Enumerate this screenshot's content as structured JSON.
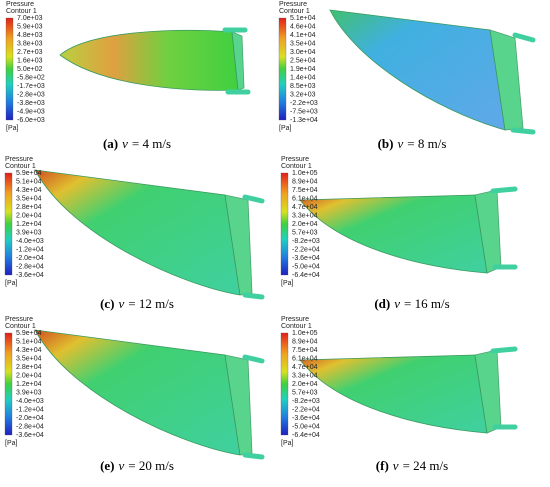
{
  "panels": [
    {
      "legend": {
        "title": "Pressure",
        "subtitle": "Contour 1",
        "unit": "[Pa]",
        "labels": [
          "7.0e+03",
          "5.9e+03",
          "4.8e+03",
          "3.8e+03",
          "2.7e+03",
          "1.6e+03",
          "5.0e+02",
          "-5.8e+02",
          "-1.7e+03",
          "-2.8e+03",
          "-3.8e+03",
          "-4.9e+03",
          "-6.0e+03"
        ]
      },
      "caption": {
        "label": "(a)",
        "variable": "v",
        "text": "= 4 m/s"
      }
    },
    {
      "legend": {
        "title": "Pressure",
        "subtitle": "Contour 1",
        "unit": "[Pa]",
        "labels": [
          "5.1e+04",
          "4.6e+04",
          "4.1e+04",
          "3.5e+04",
          "3.0e+04",
          "2.5e+04",
          "1.9e+04",
          "1.4e+04",
          "8.5e+03",
          "3.2e+03",
          "-2.2e+03",
          "-7.5e+03",
          "-1.3e+04"
        ]
      },
      "caption": {
        "label": "(b)",
        "variable": "v",
        "text": "= 8 m/s"
      }
    },
    {
      "legend": {
        "title": "Pressure",
        "subtitle": "Contour 1",
        "unit": "[Pa]",
        "labels": [
          "5.9e+04",
          "5.1e+04",
          "4.3e+04",
          "3.5e+04",
          "2.8e+04",
          "2.0e+04",
          "1.2e+04",
          "3.9e+03",
          "-4.0e+03",
          "-1.2e+04",
          "-2.0e+04",
          "-2.8e+04",
          "-3.6e+04"
        ]
      },
      "caption": {
        "label": "(c)",
        "variable": "v",
        "text": "= 12 m/s"
      }
    },
    {
      "legend": {
        "title": "Pressure",
        "subtitle": "Contour 1",
        "unit": "[Pa]",
        "labels": [
          "1.0e+05",
          "8.9e+04",
          "7.5e+04",
          "6.1e+04",
          "4.7e+04",
          "3.3e+04",
          "2.0e+04",
          "5.7e+03",
          "-8.2e+03",
          "-2.2e+04",
          "-3.6e+04",
          "-5.0e+04",
          "-6.4e+04"
        ]
      },
      "caption": {
        "label": "(d)",
        "variable": "v",
        "text": "= 16 m/s"
      }
    },
    {
      "legend": {
        "title": "Pressure",
        "subtitle": "Contour 1",
        "unit": "[Pa]",
        "labels": [
          "5.9e+04",
          "5.1e+04",
          "4.3e+04",
          "3.5e+04",
          "2.8e+04",
          "2.0e+04",
          "1.2e+04",
          "3.9e+03",
          "-4.0e+03",
          "-1.2e+04",
          "-2.0e+04",
          "-2.8e+04",
          "-3.6e+04"
        ]
      },
      "caption": {
        "label": "(e)",
        "variable": "v",
        "text": "= 20 m/s"
      }
    },
    {
      "legend": {
        "title": "Pressure",
        "subtitle": "Contour 1",
        "unit": "[Pa]",
        "labels": [
          "1.0e+05",
          "8.9e+04",
          "7.5e+04",
          "6.1e+04",
          "4.7e+04",
          "3.3e+04",
          "2.0e+04",
          "5.7e+03",
          "-8.2e+03",
          "-2.2e+04",
          "-3.6e+04",
          "-5.0e+04",
          "-6.4e+04"
        ]
      },
      "caption": {
        "label": "(f)",
        "variable": "v",
        "text": "= 24 m/s"
      }
    }
  ]
}
